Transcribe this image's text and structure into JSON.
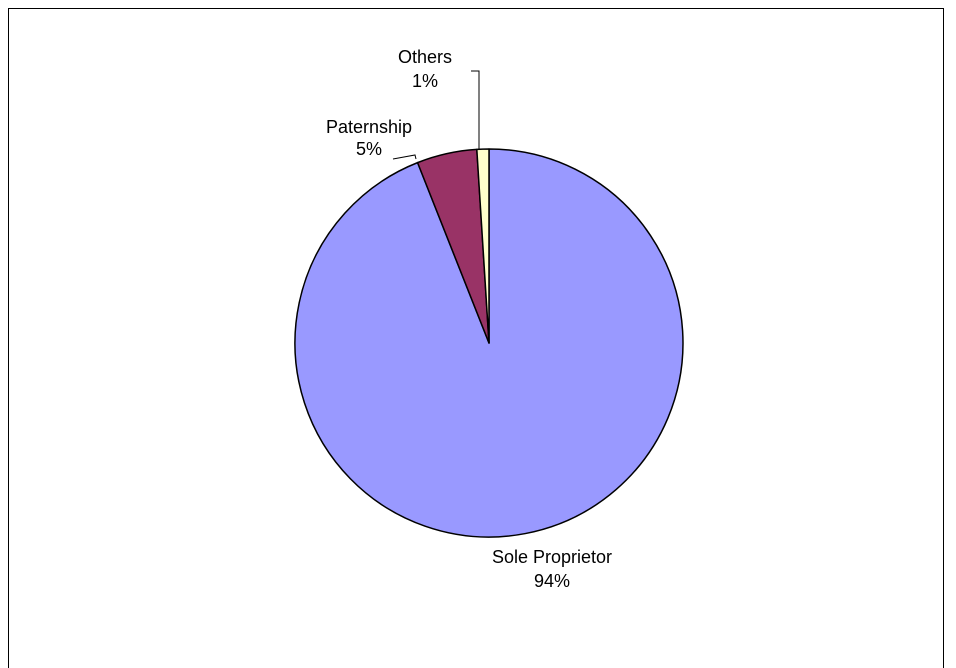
{
  "chart_data": {
    "type": "pie",
    "title": "",
    "start_angle_deg": 0,
    "direction": "clockwise",
    "slices": [
      {
        "label": "Sole Proprietor",
        "percent_label": "94%",
        "value": 94,
        "color": "#9999FF"
      },
      {
        "label": "Paternship",
        "percent_label": "5%",
        "value": 5,
        "color": "#993366"
      },
      {
        "label": "Others",
        "percent_label": "1%",
        "value": 1,
        "color": "#FFFFCC"
      }
    ]
  }
}
